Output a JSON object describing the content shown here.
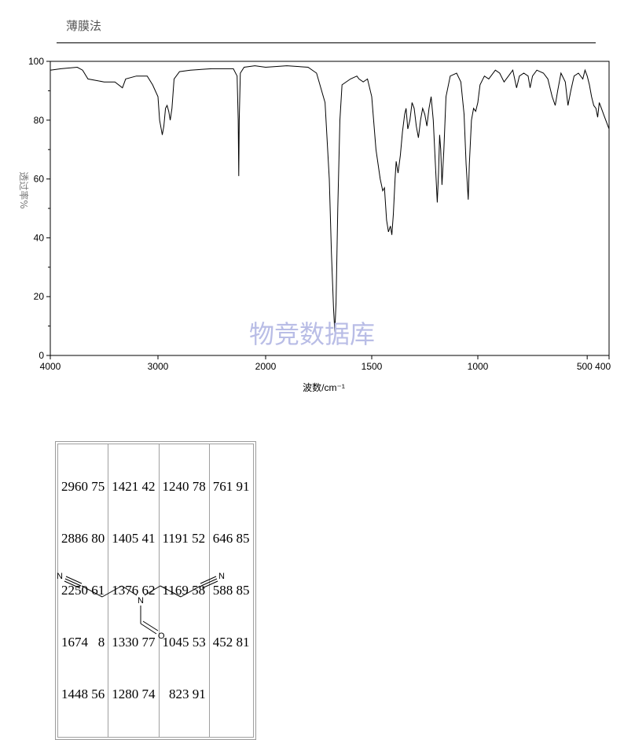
{
  "header": {
    "method": "薄膜法"
  },
  "chart_data": {
    "type": "line",
    "xlabel": "波数/cm⁻¹",
    "ylabel": "透过率%",
    "xlim": [
      4000,
      400
    ],
    "ylim": [
      0,
      100
    ],
    "x_ticks": [
      4000,
      3000,
      2000,
      1500,
      1000,
      500,
      400
    ],
    "x_tick_labels": [
      "4000",
      "3000",
      "2000",
      "1500",
      "1000",
      "500 400"
    ],
    "y_ticks": [
      0,
      20,
      40,
      60,
      80,
      100
    ],
    "series": [
      {
        "values": [
          [
            4000,
            97
          ],
          [
            3900,
            97.5
          ],
          [
            3750,
            98
          ],
          [
            3700,
            97
          ],
          [
            3650,
            94
          ],
          [
            3500,
            93
          ],
          [
            3400,
            93
          ],
          [
            3330,
            91
          ],
          [
            3300,
            94
          ],
          [
            3200,
            95
          ],
          [
            3100,
            95
          ],
          [
            3050,
            92
          ],
          [
            3000,
            88
          ],
          [
            2985,
            80
          ],
          [
            2960,
            75
          ],
          [
            2945,
            78
          ],
          [
            2930,
            84
          ],
          [
            2915,
            85
          ],
          [
            2900,
            83
          ],
          [
            2886,
            80
          ],
          [
            2870,
            84
          ],
          [
            2850,
            94
          ],
          [
            2800,
            96.5
          ],
          [
            2700,
            97
          ],
          [
            2500,
            97.5
          ],
          [
            2300,
            97.5
          ],
          [
            2265,
            95
          ],
          [
            2255,
            80
          ],
          [
            2250,
            61
          ],
          [
            2245,
            80
          ],
          [
            2235,
            96
          ],
          [
            2200,
            98
          ],
          [
            2100,
            98.5
          ],
          [
            2000,
            98
          ],
          [
            1900,
            98.5
          ],
          [
            1800,
            98
          ],
          [
            1760,
            96
          ],
          [
            1720,
            86
          ],
          [
            1700,
            60
          ],
          [
            1690,
            35
          ],
          [
            1680,
            16
          ],
          [
            1674,
            8
          ],
          [
            1668,
            18
          ],
          [
            1660,
            50
          ],
          [
            1650,
            80
          ],
          [
            1640,
            92
          ],
          [
            1600,
            94
          ],
          [
            1570,
            95
          ],
          [
            1560,
            94
          ],
          [
            1540,
            93
          ],
          [
            1520,
            94
          ],
          [
            1500,
            88
          ],
          [
            1480,
            70
          ],
          [
            1460,
            60
          ],
          [
            1448,
            56
          ],
          [
            1440,
            57
          ],
          [
            1430,
            46
          ],
          [
            1421,
            42
          ],
          [
            1412,
            44
          ],
          [
            1405,
            41
          ],
          [
            1398,
            48
          ],
          [
            1390,
            60
          ],
          [
            1385,
            66
          ],
          [
            1376,
            62
          ],
          [
            1365,
            68
          ],
          [
            1355,
            76
          ],
          [
            1345,
            82
          ],
          [
            1338,
            84
          ],
          [
            1330,
            77
          ],
          [
            1320,
            80
          ],
          [
            1310,
            86
          ],
          [
            1300,
            84
          ],
          [
            1290,
            78
          ],
          [
            1280,
            74
          ],
          [
            1270,
            80
          ],
          [
            1260,
            84
          ],
          [
            1250,
            82
          ],
          [
            1240,
            78
          ],
          [
            1230,
            84
          ],
          [
            1220,
            88
          ],
          [
            1210,
            80
          ],
          [
            1200,
            65
          ],
          [
            1191,
            52
          ],
          [
            1185,
            62
          ],
          [
            1180,
            75
          ],
          [
            1175,
            70
          ],
          [
            1169,
            58
          ],
          [
            1160,
            70
          ],
          [
            1150,
            88
          ],
          [
            1130,
            95
          ],
          [
            1100,
            96
          ],
          [
            1080,
            93
          ],
          [
            1065,
            82
          ],
          [
            1055,
            65
          ],
          [
            1045,
            53
          ],
          [
            1040,
            65
          ],
          [
            1030,
            80
          ],
          [
            1020,
            84
          ],
          [
            1010,
            83
          ],
          [
            1000,
            86
          ],
          [
            990,
            92
          ],
          [
            970,
            95
          ],
          [
            950,
            94
          ],
          [
            920,
            97
          ],
          [
            900,
            96
          ],
          [
            880,
            93
          ],
          [
            860,
            95
          ],
          [
            840,
            97
          ],
          [
            823,
            91
          ],
          [
            810,
            95
          ],
          [
            790,
            96
          ],
          [
            770,
            95
          ],
          [
            761,
            91
          ],
          [
            750,
            95
          ],
          [
            730,
            97
          ],
          [
            700,
            96
          ],
          [
            680,
            94
          ],
          [
            660,
            88
          ],
          [
            646,
            85
          ],
          [
            635,
            90
          ],
          [
            620,
            96
          ],
          [
            600,
            93
          ],
          [
            588,
            85
          ],
          [
            575,
            90
          ],
          [
            560,
            95
          ],
          [
            540,
            96
          ],
          [
            520,
            94
          ],
          [
            510,
            97
          ],
          [
            500,
            95
          ],
          [
            490,
            92
          ],
          [
            480,
            88
          ],
          [
            470,
            85
          ],
          [
            460,
            84
          ],
          [
            452,
            81
          ],
          [
            445,
            86
          ],
          [
            435,
            84
          ],
          [
            425,
            82
          ],
          [
            415,
            80
          ],
          [
            405,
            78
          ],
          [
            400,
            77
          ]
        ]
      }
    ]
  },
  "watermark": "物竞数据库",
  "peak_table": {
    "columns": [
      [
        "2960 75",
        "2886 80",
        "2250 61",
        "1674   8",
        "1448 56"
      ],
      [
        "1421 42",
        "1405 41",
        "1376 62",
        "1330 77",
        "1280 74"
      ],
      [
        "1240 78",
        "1191 52",
        "1169 58",
        "1045 53",
        "  823 91"
      ],
      [
        "761 91",
        "646 85",
        "588 85",
        "452 81"
      ]
    ]
  },
  "structure": {
    "atoms": {
      "n_left": "N",
      "n_center": "N",
      "n_right": "N",
      "o": "O"
    }
  }
}
